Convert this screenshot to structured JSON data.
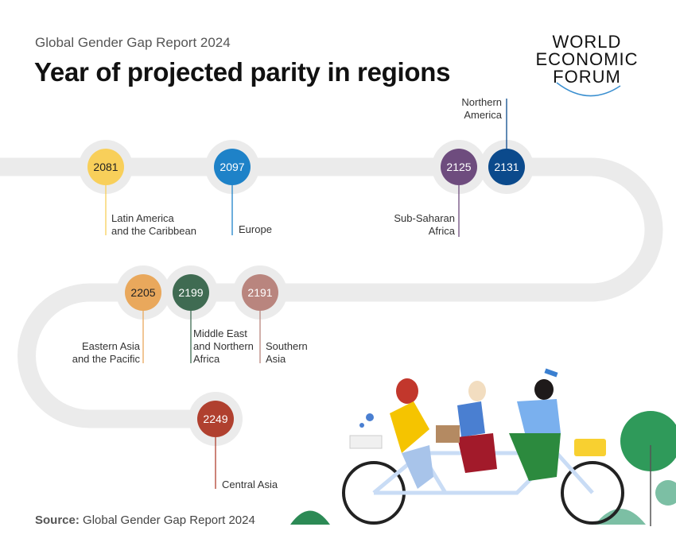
{
  "header": {
    "subtitle": "Global Gender Gap Report 2024",
    "title": "Year of projected parity in regions"
  },
  "logo": {
    "lines": [
      "WORLD",
      "ECONOMIC",
      "FORUM"
    ]
  },
  "source": {
    "label": "Source:",
    "text": "Global Gender Gap Report 2024"
  },
  "regions": [
    {
      "year": "2081",
      "lines": [
        "Latin America",
        "and the Caribbean"
      ],
      "color": "#f8cf5a",
      "text_color": "#222222"
    },
    {
      "year": "2097",
      "lines": [
        "Europe"
      ],
      "color": "#1e82c8",
      "text_color": "#ffffff"
    },
    {
      "year": "2125",
      "lines": [
        "Sub-Saharan",
        "Africa"
      ],
      "color": "#6e4c7e",
      "text_color": "#ffffff"
    },
    {
      "year": "2131",
      "lines": [
        "Northern",
        "America"
      ],
      "color": "#0b4a8c",
      "text_color": "#ffffff"
    },
    {
      "year": "2191",
      "lines": [
        "Southern",
        "Asia"
      ],
      "color": "#b9857e",
      "text_color": "#ffffff"
    },
    {
      "year": "2199",
      "lines": [
        "Middle East",
        "and Northern",
        "Africa"
      ],
      "color": "#3f6b52",
      "text_color": "#ffffff"
    },
    {
      "year": "2205",
      "lines": [
        "Eastern Asia",
        "and the Pacific"
      ],
      "color": "#e9a85c",
      "text_color": "#222222"
    },
    {
      "year": "2249",
      "lines": [
        "Central Asia"
      ],
      "color": "#b0402f",
      "text_color": "#ffffff"
    }
  ]
}
